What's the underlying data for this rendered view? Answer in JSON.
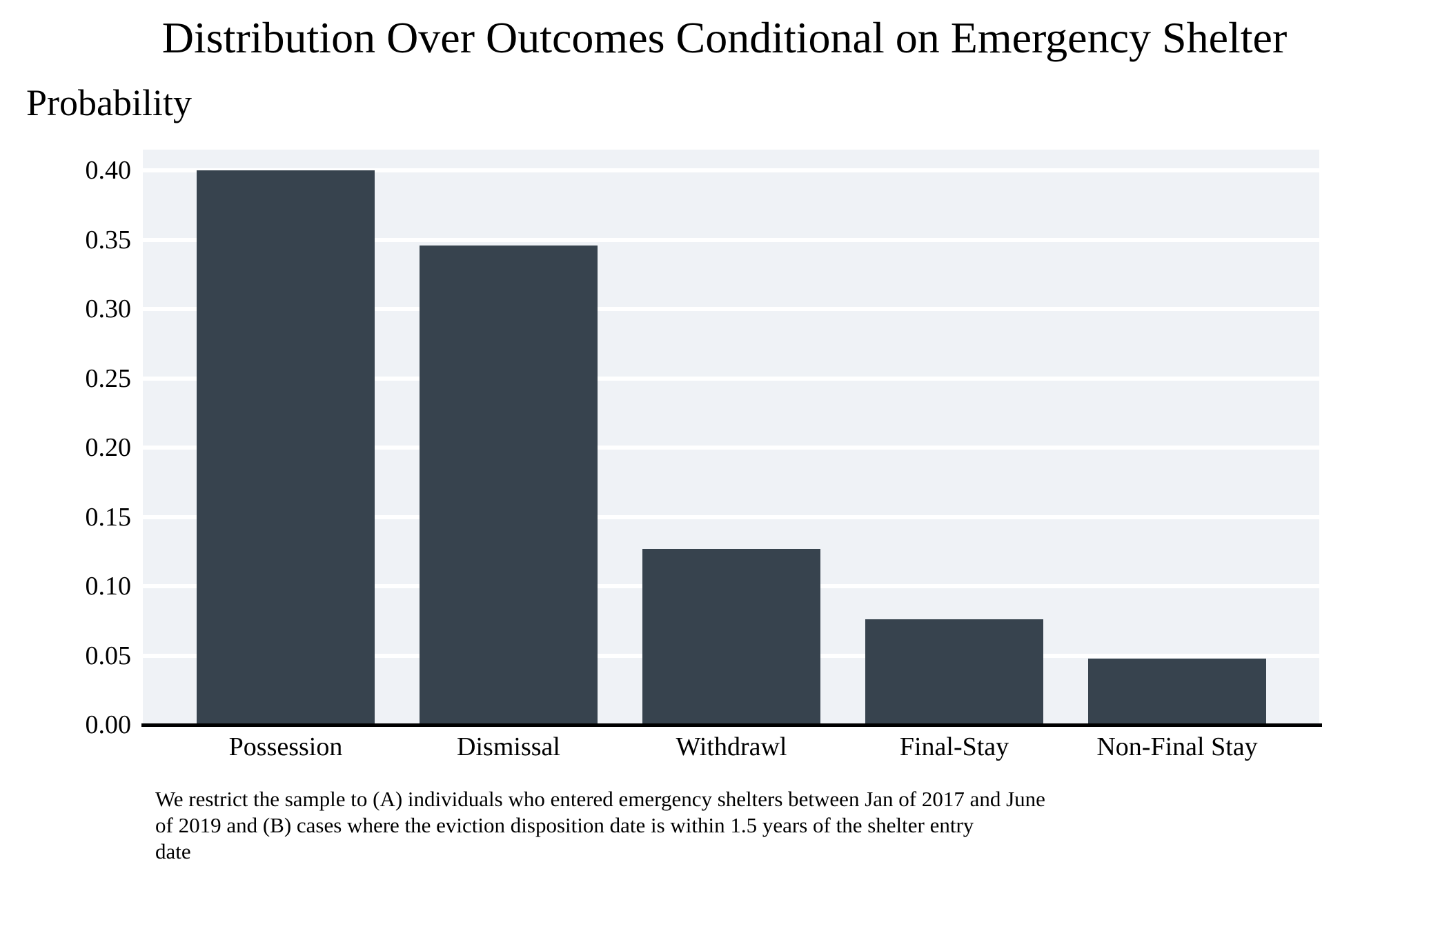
{
  "figure": {
    "title": "Distribution Over Outcomes Conditional on Emergency Shelter",
    "ylabel": "Probability"
  },
  "chart_data": {
    "type": "bar",
    "title": "Distribution Over Outcomes Conditional on Emergency Shelter",
    "ylabel": "Probability",
    "xlabel": "",
    "categories": [
      "Possession",
      "Dismissal",
      "Withdrawl",
      "Final-Stay",
      "Non-Final Stay"
    ],
    "values": [
      0.4,
      0.346,
      0.127,
      0.076,
      0.048
    ],
    "ytick_labels": [
      "0.00",
      "0.05",
      "0.10",
      "0.15",
      "0.20",
      "0.25",
      "0.30",
      "0.35",
      "0.40"
    ],
    "ylim": [
      0,
      0.415
    ],
    "grid": true,
    "gridline_color": "#ffffff",
    "legend": "none",
    "bar_color": "#37434e",
    "panel_color": "#eff2f6",
    "axis_line_color": "#000000",
    "caption_lines": [
      "We restrict the sample to (A) individuals who entered emergency shelters between Jan of 2017 and June",
      "of 2019 and (B) cases where the eviction disposition date is within 1.5 years of the shelter entry",
      "date"
    ]
  }
}
